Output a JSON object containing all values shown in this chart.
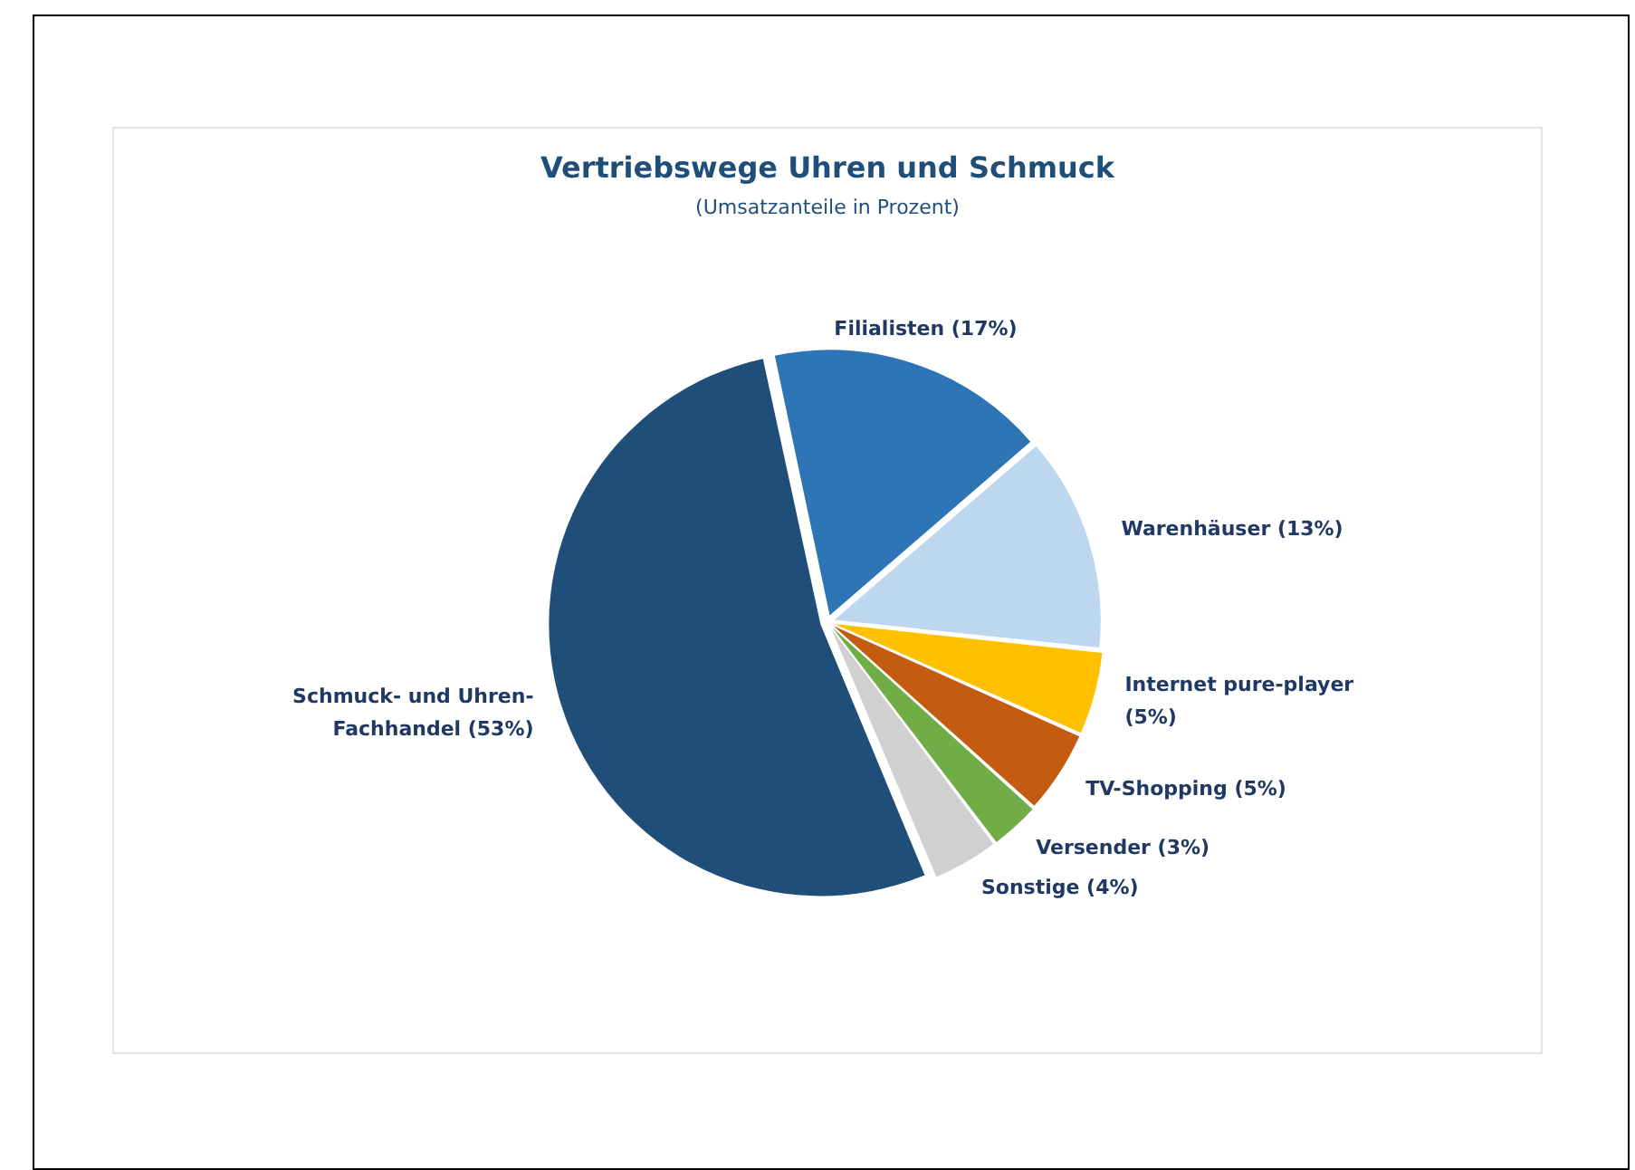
{
  "chart_data": {
    "type": "pie",
    "title": "Vertriebswege Uhren und Schmuck",
    "subtitle": "(Umsatzanteile in Prozent)",
    "categories": [
      "Filialisten (17%)",
      "Warenhäuser (13%)",
      "Internet pure-player (5%)",
      "TV-Shopping (5%)",
      "Versender (3%)",
      "Sonstige (4%)",
      "Schmuck- und Uhren-Fachhandel (53%)"
    ],
    "values": [
      17,
      13,
      5,
      5,
      3,
      4,
      53
    ],
    "colors": [
      "#2e75b6",
      "#bdd7ee",
      "#ffc000",
      "#c55a11",
      "#70ad47",
      "#d0d0d0",
      "#1f4e79"
    ],
    "legend": false
  }
}
